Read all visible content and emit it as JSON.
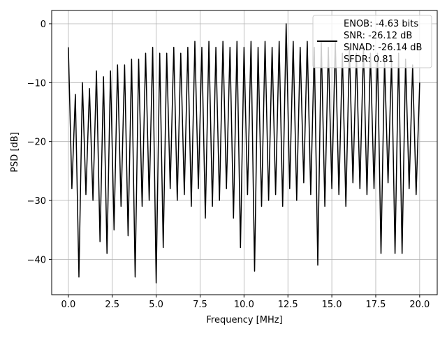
{
  "chart_data": {
    "type": "line",
    "title": "",
    "xlabel": "Frequency [MHz]",
    "ylabel": "PSD [dB]",
    "xlim": [
      -0.95,
      21.0
    ],
    "ylim": [
      -46.0,
      2.25
    ],
    "xticks": [
      0.0,
      2.5,
      5.0,
      7.5,
      10.0,
      12.5,
      15.0,
      17.5,
      20.0
    ],
    "xtick_labels": [
      "0.0",
      "2.5",
      "5.0",
      "7.5",
      "10.0",
      "12.5",
      "15.0",
      "17.5",
      "20.0"
    ],
    "yticks": [
      0,
      -10,
      -20,
      -30,
      -40
    ],
    "ytick_labels": [
      "0",
      "−10",
      "−20",
      "−30",
      "−40"
    ],
    "grid": true,
    "legend_position": "top-right",
    "line_color": "#000000",
    "series": [
      {
        "name": "ENOB: -4.63 bits\nSNR: -26.12 dB\nSINAD: -26.14 dB\nSFDR: 0.81",
        "legend_lines": [
          "ENOB: -4.63 bits",
          "SNR: -26.12 dB",
          "SINAD: -26.14 dB",
          "SFDR: 0.81"
        ],
        "x_start": 0.0,
        "x_step": 0.2,
        "y": [
          -4,
          -28,
          -12,
          -43,
          -10,
          -29,
          -11,
          -30,
          -8,
          -37,
          -9,
          -39,
          -8,
          -35,
          -7,
          -31,
          -7,
          -36,
          -6,
          -43,
          -6,
          -31,
          -5,
          -30,
          -4,
          -44,
          -5,
          -38,
          -5,
          -28,
          -4,
          -30,
          -5,
          -29,
          -4,
          -31,
          -3,
          -28,
          -4,
          -33,
          -3,
          -31,
          -4,
          -30,
          -3,
          -28,
          -4,
          -33,
          -3,
          -38,
          -4,
          -29,
          -3,
          -42,
          -4,
          -31,
          -3,
          -30,
          -4,
          -29,
          -3,
          -31,
          0,
          -28,
          -3,
          -30,
          -4,
          -27,
          -3,
          -29,
          -4,
          -41,
          -3,
          -31,
          -4,
          -28,
          -3,
          -29,
          -5,
          -31,
          -4,
          -27,
          -5,
          -28,
          -4,
          -29,
          -5,
          -28,
          -5,
          -39,
          -6,
          -27,
          -6,
          -39,
          -5,
          -39,
          -6,
          -28,
          -7,
          -29,
          -10
        ]
      }
    ]
  }
}
